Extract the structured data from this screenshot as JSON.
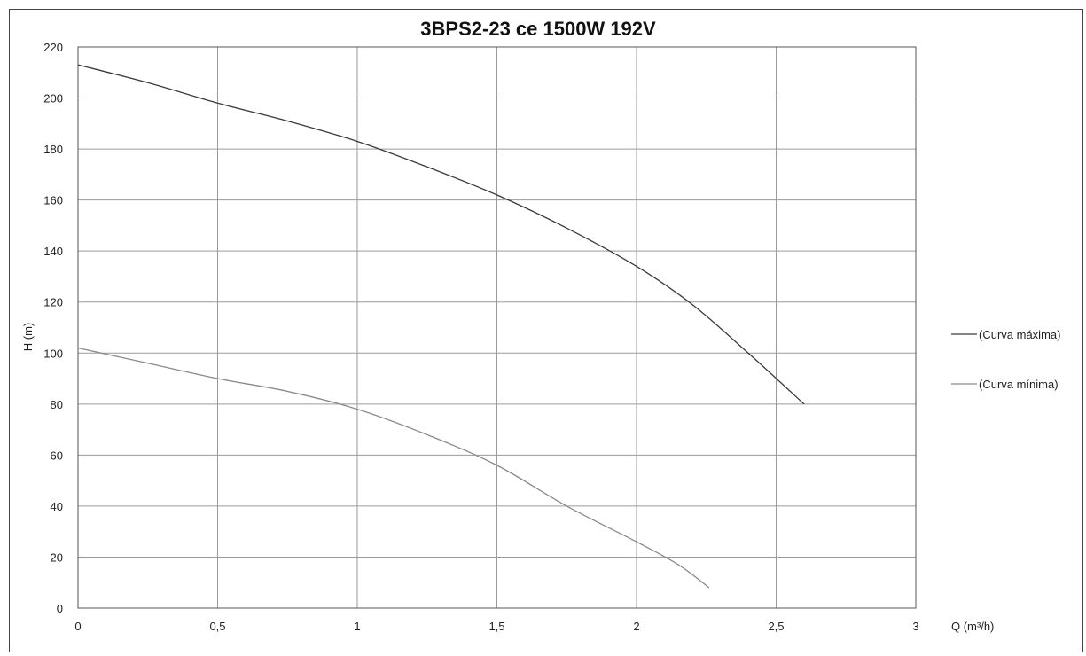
{
  "chart_data": {
    "type": "line",
    "title": "3BPS2-23 ce 1500W 192V",
    "xlabel": "Q (m³/h)",
    "ylabel": "H (m)",
    "xlim": [
      0,
      3
    ],
    "ylim": [
      0,
      220
    ],
    "x_ticks": [
      "0",
      "0,5",
      "1",
      "1,5",
      "2",
      "2,5",
      "3"
    ],
    "y_ticks": [
      "0",
      "20",
      "40",
      "60",
      "80",
      "100",
      "120",
      "140",
      "160",
      "180",
      "200",
      "220"
    ],
    "grid": true,
    "legend_position": "right",
    "series": [
      {
        "name": "(Curva máxima)",
        "color": "#3a3a3a",
        "x": [
          0,
          0.25,
          0.5,
          0.75,
          1.0,
          1.25,
          1.5,
          1.75,
          2.0,
          2.2,
          2.4,
          2.6
        ],
        "y": [
          213,
          206,
          198,
          191,
          183,
          173,
          162,
          149,
          134,
          119,
          100,
          80
        ]
      },
      {
        "name": "(Curva mínima)",
        "color": "#8a8a8a",
        "x": [
          0,
          0.25,
          0.5,
          0.75,
          1.0,
          1.25,
          1.5,
          1.75,
          2.0,
          2.15,
          2.26
        ],
        "y": [
          102,
          96,
          90,
          85,
          78,
          68,
          56,
          40,
          26,
          17,
          8
        ]
      }
    ]
  }
}
